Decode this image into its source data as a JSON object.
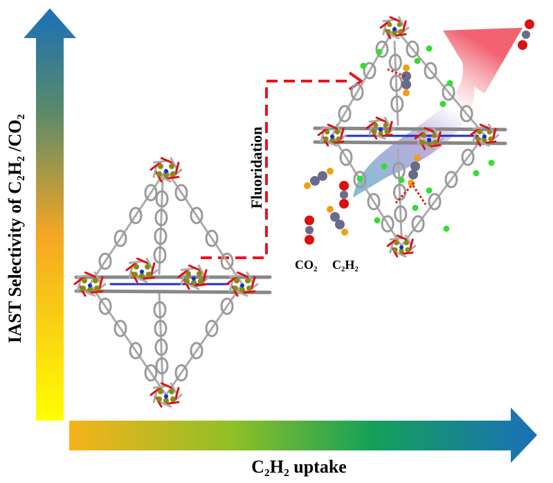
{
  "y_axis_label": "IAST Selectivity of C₂H₂ /CO₂",
  "x_axis_label": "C₂H₂ uptake",
  "step_label": "Fluoridation",
  "legend": {
    "co2": "CO₂",
    "c2h2": "C₂H₂"
  }
}
